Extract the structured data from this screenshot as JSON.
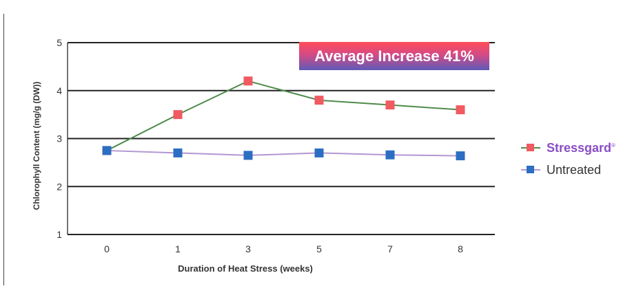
{
  "chart_data": {
    "type": "line",
    "title": "",
    "xlabel": "Duration of Heat Stress (weeks)",
    "ylabel": "Chlorophyll Content (mg/g (DW))",
    "categories": [
      "0",
      "1",
      "3",
      "5",
      "7",
      "8"
    ],
    "ylim": [
      1,
      5
    ],
    "yticks": [
      "1",
      "2",
      "3",
      "4",
      "5"
    ],
    "grid": true,
    "legend_position": "right",
    "annotation": "Average Increase 41%",
    "series": [
      {
        "name": "Stressgard",
        "values": [
          2.75,
          3.5,
          4.2,
          3.8,
          3.7,
          3.6
        ],
        "line_color": "#4e8b4a",
        "marker_color": "#f05a60"
      },
      {
        "name": "Untreated",
        "values": [
          2.75,
          2.7,
          2.65,
          2.7,
          2.66,
          2.64
        ],
        "line_color": "#b296d2",
        "marker_color": "#2c6ec2"
      }
    ]
  },
  "legend": {
    "items": [
      {
        "label": "Stressgard",
        "superscript": "®"
      },
      {
        "label": "Untreated",
        "superscript": ""
      }
    ]
  }
}
